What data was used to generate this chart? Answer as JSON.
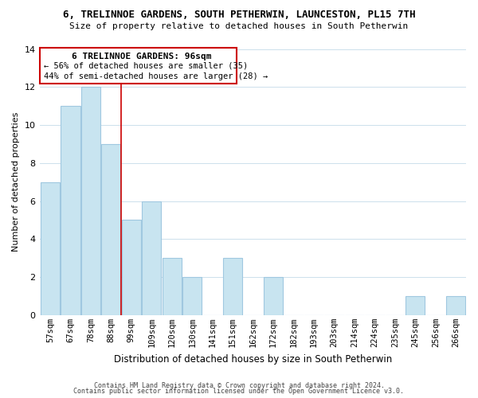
{
  "title": "6, TRELINNOE GARDENS, SOUTH PETHERWIN, LAUNCESTON, PL15 7TH",
  "subtitle": "Size of property relative to detached houses in South Petherwin",
  "xlabel": "Distribution of detached houses by size in South Petherwin",
  "ylabel": "Number of detached properties",
  "bar_labels": [
    "57sqm",
    "67sqm",
    "78sqm",
    "88sqm",
    "99sqm",
    "109sqm",
    "120sqm",
    "130sqm",
    "141sqm",
    "151sqm",
    "162sqm",
    "172sqm",
    "182sqm",
    "193sqm",
    "203sqm",
    "214sqm",
    "224sqm",
    "235sqm",
    "245sqm",
    "256sqm",
    "266sqm"
  ],
  "bar_values": [
    7,
    11,
    12,
    9,
    5,
    6,
    3,
    2,
    0,
    3,
    0,
    2,
    0,
    0,
    0,
    0,
    0,
    0,
    1,
    0,
    1
  ],
  "bar_color": "#c8e4f0",
  "bar_edge_color": "#a0c8e0",
  "property_line_label": "6 TRELINNOE GARDENS: 96sqm",
  "annotation_line1": "← 56% of detached houses are smaller (35)",
  "annotation_line2": "44% of semi-detached houses are larger (28) →",
  "vline_color": "#cc0000",
  "box_edgecolor": "#cc0000",
  "footer1": "Contains HM Land Registry data © Crown copyright and database right 2024.",
  "footer2": "Contains public sector information licensed under the Open Government Licence v3.0.",
  "ylim": [
    0,
    14
  ],
  "yticks": [
    0,
    2,
    4,
    6,
    8,
    10,
    12,
    14
  ],
  "background_color": "#ffffff",
  "grid_color": "#cce0ec"
}
